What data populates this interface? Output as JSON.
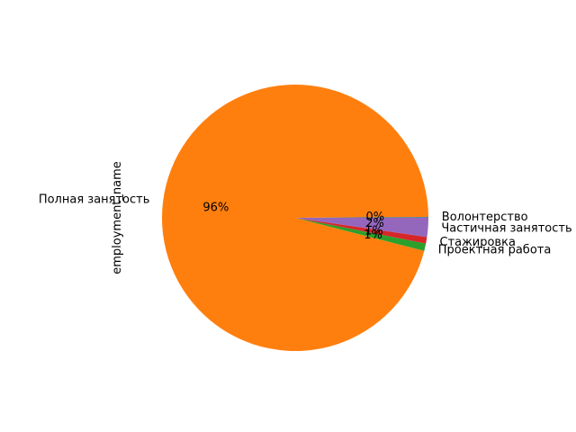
{
  "chart_data": {
    "type": "pie",
    "ylabel": "employment_name",
    "start_angle_deg": 0,
    "direction": "counterclockwise",
    "slices": [
      {
        "label": "Волонтерство",
        "value": 0.1,
        "pct_label": "0%",
        "color": "#1f77b4"
      },
      {
        "label": "Полная занятость",
        "value": 95.9,
        "pct_label": "96%",
        "color": "#ff7f0e"
      },
      {
        "label": "Проектная работа",
        "value": 0.9,
        "pct_label": "1%",
        "color": "#2ca02c"
      },
      {
        "label": "Стажировка",
        "value": 0.8,
        "pct_label": "1%",
        "color": "#d62728"
      },
      {
        "label": "Частичная занятость",
        "value": 2.3,
        "pct_label": "2%",
        "color": "#9467bd"
      }
    ]
  }
}
